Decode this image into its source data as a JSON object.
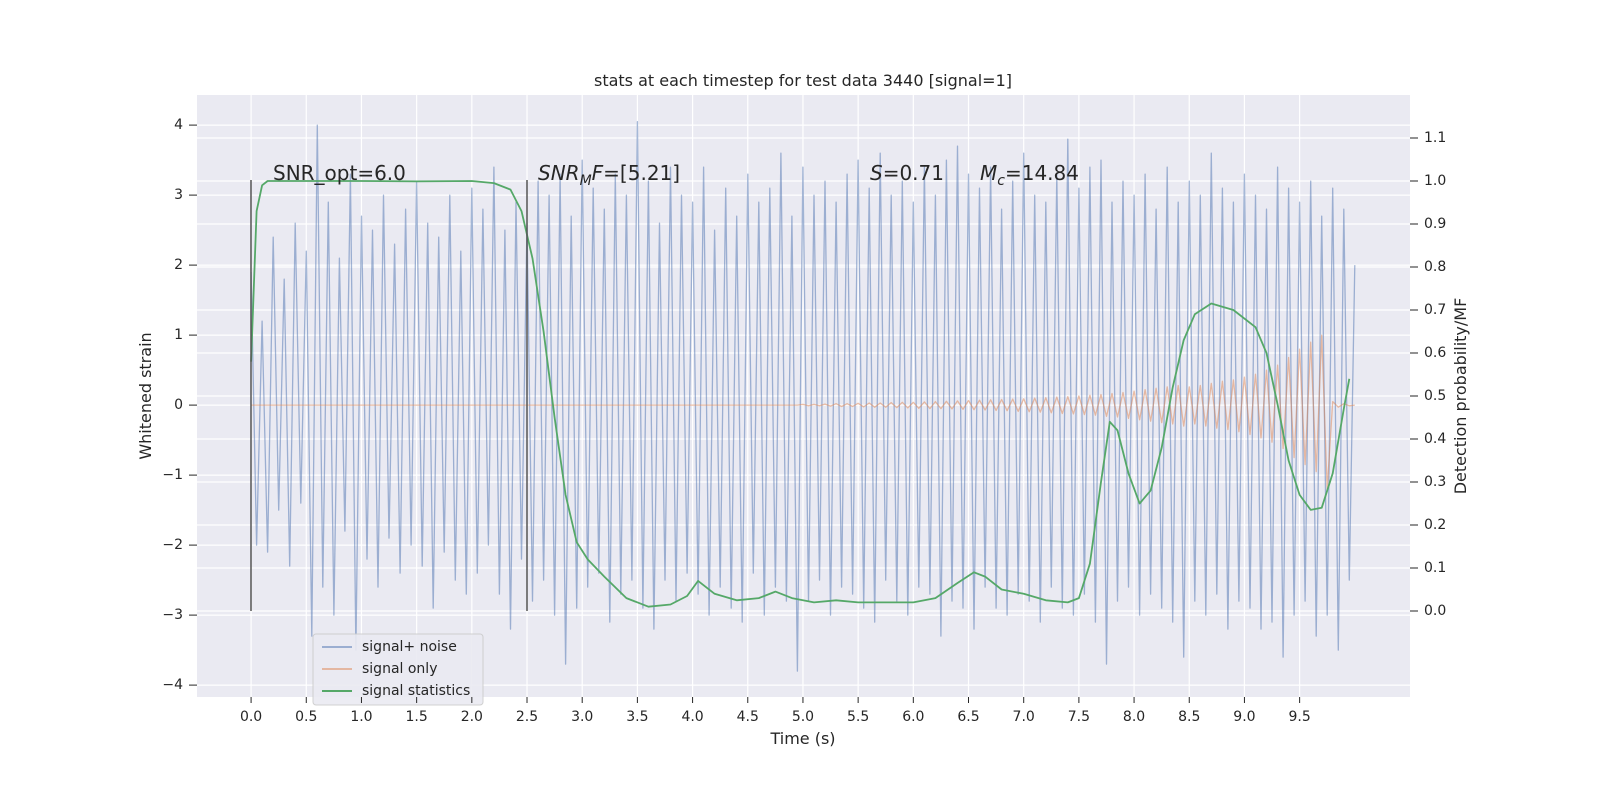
{
  "chart_data": {
    "type": "line",
    "title": "stats at each timestep for test data 3440 [signal=1]",
    "xlabel": "Time (s)",
    "ylabel": "Whitened strain",
    "y2label": "Detection probability/MF",
    "annotations": [
      [
        "SNR_opt=6.0"
      ],
      [
        "SNR",
        "M",
        "F",
        "=[5.21]"
      ],
      [
        "S",
        "=0.71"
      ],
      [
        "M",
        "c",
        "=14.84"
      ]
    ],
    "xlim": [
      -0.49,
      10.5
    ],
    "ylim": [
      -4.17,
      4.43
    ],
    "y2lim": [
      -0.2,
      1.2
    ],
    "xticks": [
      {
        "value": 0,
        "label": "0.0"
      },
      {
        "value": 0.5,
        "label": "0.5"
      },
      {
        "value": 1,
        "label": "1.0"
      },
      {
        "value": 1.5,
        "label": "1.5"
      },
      {
        "value": 2,
        "label": "2.0"
      },
      {
        "value": 2.5,
        "label": "2.5"
      },
      {
        "value": 3,
        "label": "3.0"
      },
      {
        "value": 3.5,
        "label": "3.5"
      },
      {
        "value": 4,
        "label": "4.0"
      },
      {
        "value": 4.5,
        "label": "4.5"
      },
      {
        "value": 5,
        "label": "5.0"
      },
      {
        "value": 5.5,
        "label": "5.5"
      },
      {
        "value": 6,
        "label": "6.0"
      },
      {
        "value": 6.5,
        "label": "6.5"
      },
      {
        "value": 7,
        "label": "7.0"
      },
      {
        "value": 7.5,
        "label": "7.5"
      },
      {
        "value": 8,
        "label": "8.0"
      },
      {
        "value": 8.5,
        "label": "8.5"
      },
      {
        "value": 9,
        "label": "9.0"
      },
      {
        "value": 9.5,
        "label": "9.5"
      }
    ],
    "yticks": [
      {
        "value": -4,
        "label": "−4"
      },
      {
        "value": -3,
        "label": "−3"
      },
      {
        "value": -2,
        "label": "−2"
      },
      {
        "value": -1,
        "label": "−1"
      },
      0,
      1,
      2,
      3,
      4
    ],
    "y2ticks": [
      {
        "value": 0,
        "label": "0.0"
      },
      {
        "value": 0.1,
        "label": "0.1"
      },
      {
        "value": 0.2,
        "label": "0.2"
      },
      {
        "value": 0.3,
        "label": "0.3"
      },
      {
        "value": 0.4,
        "label": "0.4"
      },
      {
        "value": 0.5,
        "label": "0.5"
      },
      {
        "value": 0.6,
        "label": "0.6"
      },
      {
        "value": 0.7,
        "label": "0.7"
      },
      {
        "value": 0.8,
        "label": "0.8"
      },
      {
        "value": 0.9,
        "label": "0.9"
      },
      {
        "value": 1,
        "label": "1.0"
      },
      {
        "value": 1.1,
        "label": "1.1"
      }
    ],
    "grid": true,
    "x": [
      0,
      0.05,
      0.1,
      0.15,
      0.2,
      0.25,
      0.3,
      0.35,
      0.4,
      0.45,
      0.5,
      0.55,
      0.6,
      0.65,
      0.7,
      0.75,
      0.8,
      0.85,
      0.9,
      0.95,
      1,
      1.05,
      1.1,
      1.15,
      1.2,
      1.25,
      1.3,
      1.35,
      1.4,
      1.45,
      1.5,
      1.55,
      1.6,
      1.65,
      1.7,
      1.75,
      1.8,
      1.85,
      1.9,
      1.95,
      2,
      2.05,
      2.1,
      2.15,
      2.2,
      2.25,
      2.3,
      2.35,
      2.4,
      2.45,
      2.5,
      2.55,
      2.6,
      2.65,
      2.7,
      2.75,
      2.8,
      2.85,
      2.9,
      2.95,
      3,
      3.05,
      3.1,
      3.15,
      3.2,
      3.25,
      3.3,
      3.35,
      3.4,
      3.45,
      3.5,
      3.55,
      3.6,
      3.65,
      3.7,
      3.75,
      3.8,
      3.85,
      3.9,
      3.95,
      4,
      4.05,
      4.1,
      4.15,
      4.2,
      4.25,
      4.3,
      4.35,
      4.4,
      4.45,
      4.5,
      4.55,
      4.6,
      4.65,
      4.7,
      4.75,
      4.8,
      4.85,
      4.9,
      4.95,
      5,
      5.05,
      5.1,
      5.15,
      5.2,
      5.25,
      5.3,
      5.35,
      5.4,
      5.45,
      5.5,
      5.55,
      5.6,
      5.65,
      5.7,
      5.75,
      5.8,
      5.85,
      5.9,
      5.95,
      6,
      6.05,
      6.1,
      6.15,
      6.2,
      6.25,
      6.3,
      6.35,
      6.4,
      6.45,
      6.5,
      6.55,
      6.6,
      6.65,
      6.7,
      6.75,
      6.8,
      6.85,
      6.9,
      6.95,
      7,
      7.05,
      7.1,
      7.15,
      7.2,
      7.25,
      7.3,
      7.35,
      7.4,
      7.45,
      7.5,
      7.55,
      7.6,
      7.65,
      7.7,
      7.75,
      7.8,
      7.85,
      7.9,
      7.95,
      8,
      8.05,
      8.1,
      8.15,
      8.2,
      8.25,
      8.3,
      8.35,
      8.4,
      8.45,
      8.5,
      8.55,
      8.6,
      8.65,
      8.7,
      8.75,
      8.8,
      8.85,
      8.9,
      8.95,
      9,
      9.05,
      9.1,
      9.15,
      9.2,
      9.25,
      9.3,
      9.35,
      9.4,
      9.45,
      9.5,
      9.55,
      9.6,
      9.65,
      9.7,
      9.75,
      9.8,
      9.85,
      9.9,
      9.95,
      10
    ],
    "series": [
      {
        "name": "signal+ noise",
        "color": "#4c72b0",
        "values": [
          1.9,
          -2.0,
          1.2,
          -2.1,
          2.4,
          -1.5,
          1.8,
          -2.3,
          2.6,
          -1.4,
          2.2,
          -3.3,
          4.0,
          -2.6,
          2.9,
          -3.0,
          2.1,
          -1.8,
          3.3,
          -3.5,
          2.7,
          -2.2,
          2.5,
          -2.6,
          3.0,
          -1.9,
          2.3,
          -2.4,
          2.8,
          -2.0,
          3.2,
          -2.3,
          2.6,
          -2.9,
          2.4,
          -2.1,
          3.0,
          -2.5,
          2.2,
          -2.7,
          3.1,
          -2.4,
          2.8,
          -2.0,
          3.4,
          -2.7,
          2.5,
          -3.2,
          2.9,
          -2.2,
          2.6,
          -2.8,
          3.2,
          -2.5,
          3.0,
          -3.0,
          3.3,
          -3.7,
          2.7,
          -2.9,
          3.5,
          -2.6,
          3.1,
          -2.4,
          2.8,
          -3.1,
          3.3,
          -2.7,
          3.0,
          -2.5,
          4.05,
          -2.9,
          3.2,
          -3.2,
          2.6,
          -2.5,
          3.4,
          -2.8,
          3.0,
          -2.4,
          2.9,
          -2.7,
          3.4,
          -3.0,
          2.5,
          -2.6,
          3.1,
          -2.9,
          2.7,
          -3.1,
          3.3,
          -2.4,
          2.9,
          -3.0,
          3.1,
          -2.6,
          3.6,
          -2.8,
          2.7,
          -3.8,
          3.4,
          -2.8,
          3.0,
          -2.5,
          3.2,
          -3.0,
          2.9,
          -2.6,
          3.3,
          -2.7,
          3.5,
          -2.9,
          3.1,
          -3.1,
          3.6,
          -2.5,
          3.0,
          -2.8,
          3.2,
          -3.0,
          2.9,
          -2.6,
          3.4,
          -2.7,
          3.0,
          -3.3,
          3.5,
          -2.8,
          3.7,
          -2.9,
          3.3,
          -3.2,
          3.1,
          -2.6,
          3.4,
          -2.9,
          2.8,
          -3.0,
          3.2,
          -2.7,
          3.6,
          -2.8,
          3.0,
          -3.1,
          2.9,
          -2.6,
          3.3,
          -2.9,
          3.8,
          -3.0,
          3.1,
          -2.7,
          3.4,
          -3.1,
          3.5,
          -3.7,
          2.9,
          -2.8,
          3.2,
          -2.6,
          3.0,
          -3.0,
          3.3,
          -2.7,
          2.8,
          -2.9,
          3.4,
          -3.1,
          2.9,
          -3.6,
          3.2,
          -2.8,
          3.0,
          -3.0,
          3.6,
          -2.7,
          3.1,
          -3.2,
          2.9,
          -2.8,
          3.3,
          -2.9,
          3.0,
          -3.2,
          2.8,
          -3.1,
          3.4,
          -3.6,
          3.1,
          -3.0,
          2.9,
          -2.8,
          3.2,
          -3.3,
          2.7,
          -3.0,
          3.1,
          -3.5,
          2.8,
          -2.5,
          2.0
        ]
      },
      {
        "name": "signal only",
        "color": "#dd8452",
        "values": [
          0,
          0,
          0,
          0,
          0,
          0,
          0,
          0,
          0,
          0,
          0,
          0,
          0,
          0,
          0,
          0,
          0,
          0,
          0,
          0,
          0,
          0,
          0,
          0,
          0,
          0,
          0,
          0,
          0,
          0,
          0,
          0,
          0,
          0,
          0,
          0,
          0,
          0,
          0,
          0,
          0,
          0,
          0,
          0,
          0,
          0,
          0,
          0,
          0,
          0,
          0,
          0,
          0,
          0,
          0,
          0,
          0,
          0,
          0,
          0,
          0,
          0,
          0,
          0,
          0,
          0,
          0,
          0,
          0,
          0,
          0,
          0,
          0,
          0,
          0,
          0,
          0,
          0,
          0,
          0,
          0,
          0,
          0,
          0,
          0,
          0,
          0,
          0,
          0,
          0,
          0,
          0,
          0,
          0,
          0,
          0,
          0,
          0,
          0,
          0,
          0.01,
          -0.01,
          0.01,
          -0.01,
          0.015,
          -0.015,
          0.02,
          -0.02,
          0.02,
          -0.02,
          0.025,
          -0.025,
          0.03,
          -0.03,
          0.03,
          -0.03,
          0.035,
          -0.035,
          0.04,
          -0.04,
          0.04,
          -0.045,
          0.045,
          -0.05,
          0.05,
          -0.05,
          0.055,
          -0.055,
          0.06,
          -0.06,
          0.065,
          -0.065,
          0.07,
          -0.07,
          0.075,
          -0.075,
          0.08,
          -0.08,
          0.085,
          -0.09,
          0.09,
          -0.095,
          0.1,
          -0.1,
          0.105,
          -0.11,
          0.115,
          -0.12,
          0.12,
          -0.125,
          0.13,
          -0.135,
          0.14,
          -0.145,
          0.15,
          -0.16,
          0.165,
          -0.17,
          0.18,
          -0.19,
          0.2,
          -0.21,
          0.22,
          -0.23,
          0.24,
          -0.25,
          0.26,
          -0.27,
          0.28,
          -0.3,
          0.26,
          -0.27,
          0.28,
          -0.3,
          0.31,
          -0.33,
          0.34,
          -0.35,
          0.36,
          -0.38,
          0.4,
          -0.42,
          0.44,
          -0.47,
          0.5,
          -0.53,
          0.57,
          -0.62,
          0.68,
          -0.75,
          0.8,
          -0.85,
          0.9,
          -0.95,
          1.0,
          -1.2,
          0.05,
          -0.03,
          0.02,
          -0.01,
          0
        ]
      },
      {
        "name": "signal statistics",
        "color": "#55a868",
        "axis": "y2",
        "x": [
          0,
          0.05,
          0.1,
          0.15,
          0.2,
          0.3,
          0.5,
          1.0,
          1.5,
          2.0,
          2.2,
          2.35,
          2.45,
          2.55,
          2.65,
          2.75,
          2.85,
          2.95,
          3.05,
          3.2,
          3.4,
          3.6,
          3.8,
          3.95,
          4.05,
          4.2,
          4.4,
          4.6,
          4.75,
          4.9,
          5.1,
          5.3,
          5.5,
          5.7,
          6.0,
          6.2,
          6.4,
          6.55,
          6.65,
          6.8,
          7.0,
          7.2,
          7.4,
          7.5,
          7.6,
          7.7,
          7.78,
          7.85,
          7.95,
          8.05,
          8.15,
          8.25,
          8.35,
          8.45,
          8.55,
          8.7,
          8.9,
          9.1,
          9.2,
          9.3,
          9.4,
          9.5,
          9.6,
          9.7,
          9.8,
          9.9,
          9.95
        ],
        "values": [
          0.58,
          0.93,
          0.99,
          1.0,
          1.0,
          1.0,
          1.0,
          1.0,
          0.999,
          1.0,
          0.995,
          0.98,
          0.93,
          0.82,
          0.65,
          0.45,
          0.27,
          0.16,
          0.12,
          0.08,
          0.03,
          0.01,
          0.015,
          0.035,
          0.07,
          0.04,
          0.025,
          0.03,
          0.045,
          0.03,
          0.02,
          0.025,
          0.02,
          0.02,
          0.02,
          0.03,
          0.065,
          0.09,
          0.08,
          0.05,
          0.04,
          0.025,
          0.02,
          0.03,
          0.11,
          0.3,
          0.44,
          0.42,
          0.32,
          0.25,
          0.28,
          0.38,
          0.52,
          0.63,
          0.69,
          0.715,
          0.7,
          0.66,
          0.6,
          0.48,
          0.35,
          0.27,
          0.235,
          0.24,
          0.32,
          0.47,
          0.54
        ]
      }
    ]
  }
}
